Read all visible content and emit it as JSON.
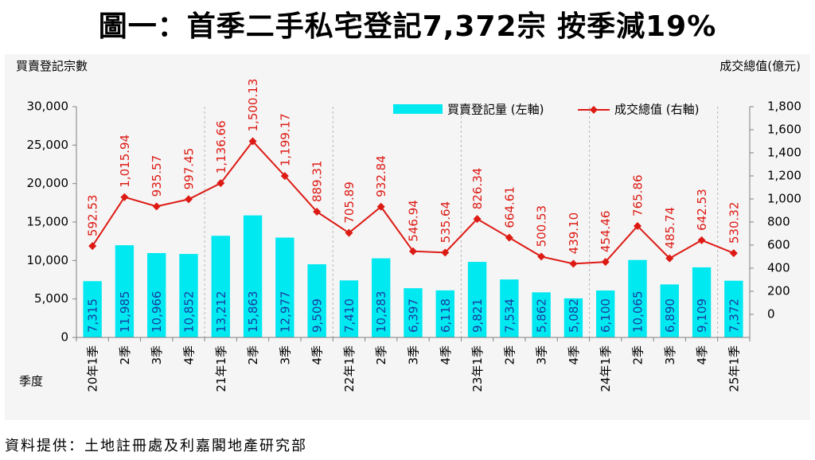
{
  "title": "圖一：首季二手私宅登記7,372宗  按季減19%",
  "source": "資料提供：土地註冊處及利嘉閣地產研究部",
  "chart_data": {
    "type": "bar+line",
    "left_axis_label": "買賣登記宗數",
    "right_axis_label": "成交總值(億元)",
    "x_axis_label": "季度",
    "categories": [
      "20年1季",
      "2季",
      "3季",
      "4季",
      "21年1季",
      "2季",
      "3季",
      "4季",
      "22年1季",
      "2季",
      "3季",
      "4季",
      "23年1季",
      "2季",
      "3季",
      "4季",
      "24年1季",
      "2季",
      "3季",
      "4季",
      "25年1季"
    ],
    "series": [
      {
        "name": "買賣登記量 (左軸)",
        "type": "bar",
        "axis": "left",
        "values": [
          7315,
          11985,
          10966,
          10852,
          13212,
          15863,
          12977,
          9509,
          7410,
          10283,
          6397,
          6118,
          9821,
          7534,
          5862,
          5082,
          6100,
          10065,
          6890,
          9109,
          7372
        ],
        "labels": [
          "7,315",
          "11,985",
          "10,966",
          "10,852",
          "13,212",
          "15,863",
          "12,977",
          "9,509",
          "7,410",
          "10,283",
          "6,397",
          "6,118",
          "9,821",
          "7,534",
          "5,862",
          "5,082",
          "6,100",
          "10,065",
          "6,890",
          "9,109",
          "7,372"
        ]
      },
      {
        "name": "成交總值 (右軸)",
        "type": "line",
        "axis": "right",
        "values": [
          592.53,
          1015.94,
          935.57,
          997.45,
          1136.66,
          1500.13,
          1199.17,
          889.31,
          705.89,
          932.84,
          546.94,
          535.64,
          826.34,
          664.61,
          500.53,
          439.1,
          454.46,
          765.86,
          485.74,
          642.53,
          530.32
        ],
        "labels": [
          "592.53",
          "1,015.94",
          "935.57",
          "997.45",
          "1,136.66",
          "1,500.13",
          "1,199.17",
          "889.31",
          "705.89",
          "932.84",
          "546.94",
          "535.64",
          "826.34",
          "664.61",
          "500.53",
          "439.10",
          "454.46",
          "765.86",
          "485.74",
          "642.53",
          "530.32"
        ]
      }
    ],
    "left_ylim": [
      0,
      30000
    ],
    "left_ticks": [
      "30,000",
      "25,000",
      "20,000",
      "15,000",
      "10,000",
      "5,000",
      "0"
    ],
    "left_tick_values": [
      30000,
      25000,
      20000,
      15000,
      10000,
      5000,
      0
    ],
    "right_ylim": [
      -200,
      1800
    ],
    "right_ticks": [
      "1,800",
      "1,600",
      "1,400",
      "1,200",
      "1,000",
      "800",
      "600",
      "400",
      "200",
      "0"
    ],
    "right_tick_values": [
      1800,
      1600,
      1400,
      1200,
      1000,
      800,
      600,
      400,
      200,
      0
    ],
    "year_dividers_after": [
      3,
      7,
      11,
      15,
      19
    ],
    "legend_placement": "top-right",
    "colors": {
      "bar": "#00e8f0",
      "line": "#dd1a14",
      "bar_label": "#1a3ea0",
      "line_label": "#dd1a14",
      "divider": "#b8b8b8"
    }
  }
}
